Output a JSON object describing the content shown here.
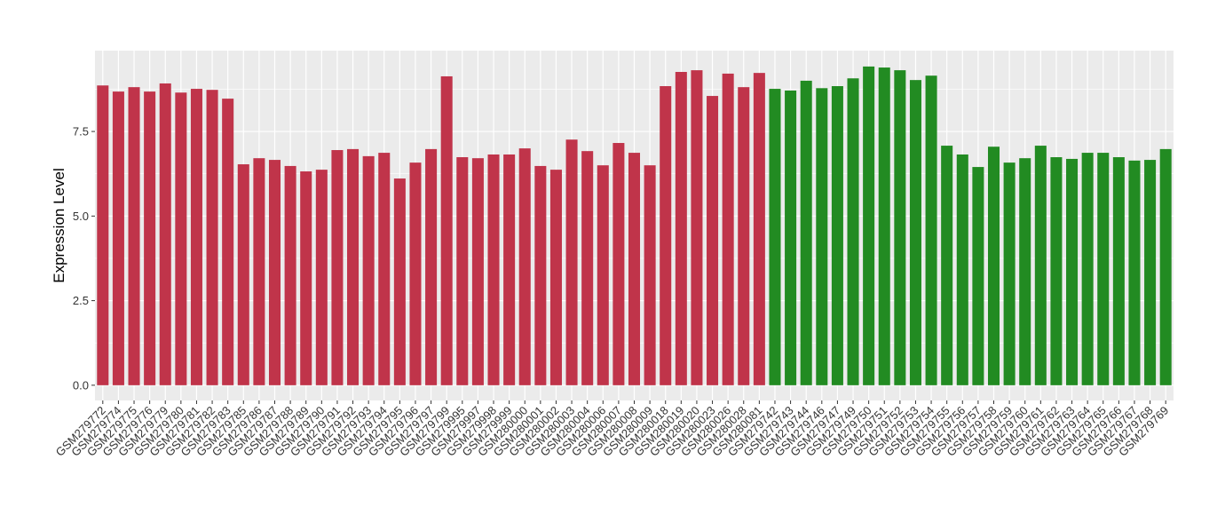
{
  "chart_data": {
    "type": "bar",
    "y_label": "Expression Level",
    "categories": [
      "GSM279772",
      "GSM279774",
      "GSM279775",
      "GSM279776",
      "GSM279779",
      "GSM279780",
      "GSM279781",
      "GSM279782",
      "GSM279783",
      "GSM279785",
      "GSM279786",
      "GSM279787",
      "GSM279788",
      "GSM279789",
      "GSM279790",
      "GSM279791",
      "GSM279792",
      "GSM279793",
      "GSM279794",
      "GSM279795",
      "GSM279796",
      "GSM279797",
      "GSM279799",
      "GSM279995",
      "GSM279997",
      "GSM279998",
      "GSM279999",
      "GSM280000",
      "GSM280001",
      "GSM280002",
      "GSM280003",
      "GSM280004",
      "GSM280006",
      "GSM280007",
      "GSM280008",
      "GSM280009",
      "GSM280018",
      "GSM280019",
      "GSM280020",
      "GSM280023",
      "GSM280026",
      "GSM280028",
      "GSM280081",
      "GSM279742",
      "GSM279743",
      "GSM279744",
      "GSM279746",
      "GSM279747",
      "GSM279749",
      "GSM279750",
      "GSM279751",
      "GSM279752",
      "GSM279753",
      "GSM279754",
      "GSM279755",
      "GSM279756",
      "GSM279757",
      "GSM279758",
      "GSM279759",
      "GSM279760",
      "GSM279761",
      "GSM279762",
      "GSM279763",
      "GSM279764",
      "GSM279765",
      "GSM279766",
      "GSM279767",
      "GSM279768",
      "GSM279769"
    ],
    "values": [
      8.86,
      8.68,
      8.81,
      8.68,
      8.92,
      8.65,
      8.76,
      8.73,
      8.47,
      6.53,
      6.71,
      6.66,
      6.48,
      6.32,
      6.37,
      6.95,
      6.98,
      6.77,
      6.87,
      6.11,
      6.58,
      6.98,
      9.13,
      6.74,
      6.71,
      6.82,
      6.82,
      7.0,
      6.48,
      6.37,
      7.26,
      6.92,
      6.5,
      7.16,
      6.87,
      6.5,
      8.84,
      9.26,
      9.31,
      8.55,
      9.21,
      8.81,
      9.23,
      8.76,
      8.71,
      9.0,
      8.78,
      8.84,
      9.07,
      9.42,
      9.39,
      9.31,
      9.02,
      9.15,
      7.08,
      6.82,
      6.45,
      7.05,
      6.58,
      6.71,
      7.08,
      6.74,
      6.69,
      6.87,
      6.87,
      6.74,
      6.64,
      6.66,
      6.98
    ],
    "colors": [
      "#c0344a",
      "#c0344a",
      "#c0344a",
      "#c0344a",
      "#c0344a",
      "#c0344a",
      "#c0344a",
      "#c0344a",
      "#c0344a",
      "#c0344a",
      "#c0344a",
      "#c0344a",
      "#c0344a",
      "#c0344a",
      "#c0344a",
      "#c0344a",
      "#c0344a",
      "#c0344a",
      "#c0344a",
      "#c0344a",
      "#c0344a",
      "#c0344a",
      "#c0344a",
      "#c0344a",
      "#c0344a",
      "#c0344a",
      "#c0344a",
      "#c0344a",
      "#c0344a",
      "#c0344a",
      "#c0344a",
      "#c0344a",
      "#c0344a",
      "#c0344a",
      "#c0344a",
      "#c0344a",
      "#c0344a",
      "#c0344a",
      "#c0344a",
      "#c0344a",
      "#c0344a",
      "#c0344a",
      "#c0344a",
      "#228b22",
      "#228b22",
      "#228b22",
      "#228b22",
      "#228b22",
      "#228b22",
      "#228b22",
      "#228b22",
      "#228b22",
      "#228b22",
      "#228b22",
      "#228b22",
      "#228b22",
      "#228b22",
      "#228b22",
      "#228b22",
      "#228b22",
      "#228b22",
      "#228b22",
      "#228b22",
      "#228b22",
      "#228b22",
      "#228b22",
      "#228b22",
      "#228b22",
      "#228b22"
    ],
    "ylim": [
      -0.45,
      9.89
    ],
    "yticks": [
      {
        "value": 0,
        "label": "0.0"
      },
      2.5,
      {
        "value": 5,
        "label": "5.0"
      },
      7.5
    ],
    "grid": true
  }
}
